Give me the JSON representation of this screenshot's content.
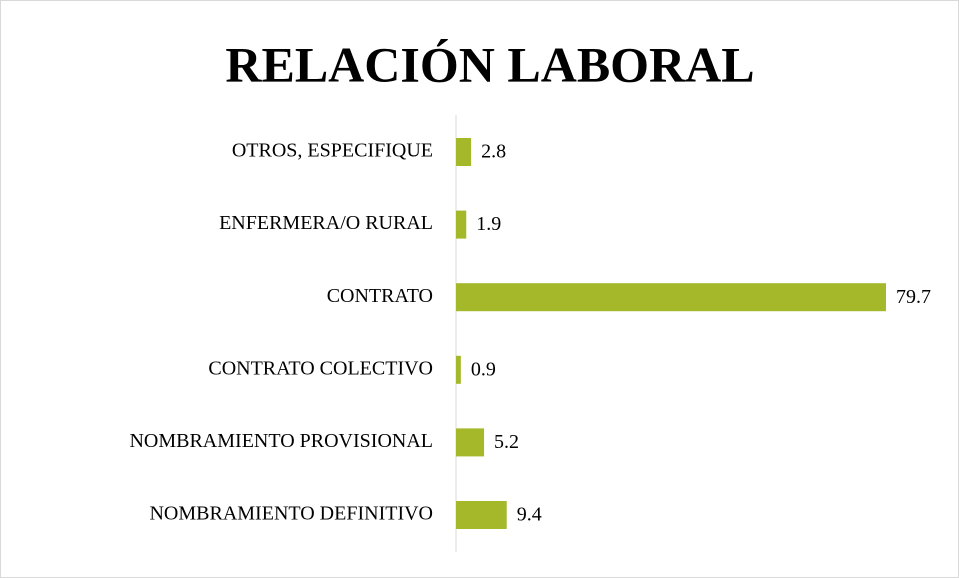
{
  "chart_data": {
    "type": "bar",
    "orientation": "horizontal",
    "title": "RELACIÓN LABORAL",
    "categories": [
      "OTROS, ESPECIFIQUE",
      "ENFERMERA/O RURAL",
      "CONTRATO",
      "CONTRATO COLECTIVO",
      "NOMBRAMIENTO PROVISIONAL",
      "NOMBRAMIENTO DEFINITIVO"
    ],
    "values": [
      2.8,
      1.9,
      79.7,
      0.9,
      5.2,
      9.4
    ],
    "color": "#a5b82a"
  }
}
